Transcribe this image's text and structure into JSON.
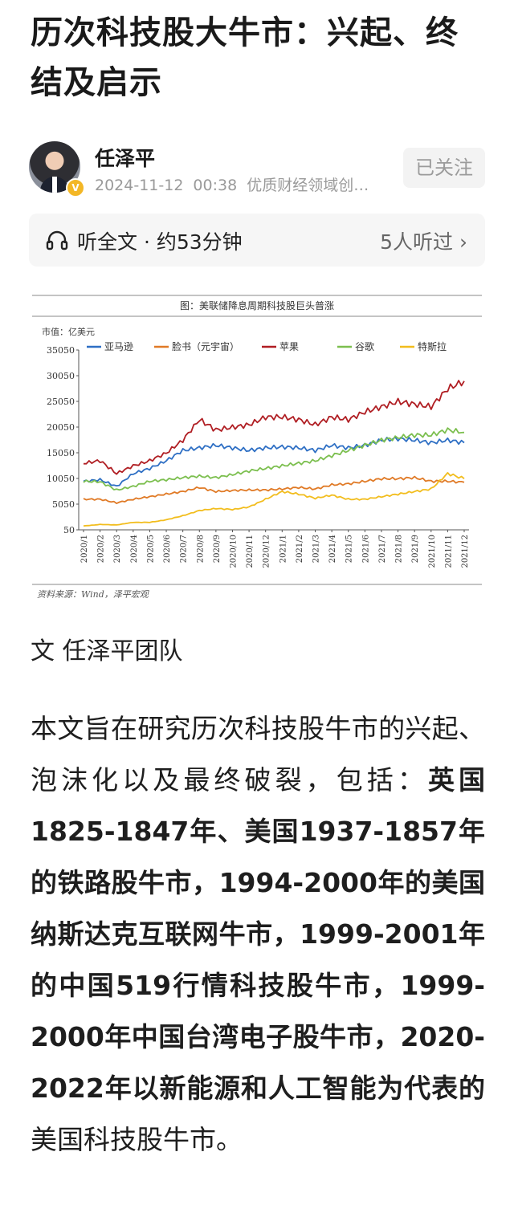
{
  "article": {
    "title": "历次科技股大牛市：兴起、终结及启示",
    "byline": "文 任泽平团队",
    "body_intro": "本文旨在研究历次科技股牛市的兴起、泡沫化以及最终破裂，包括：",
    "body_bold": "英国1825-1847年、美国1937-1857年的铁路股牛市，1994-2000年的美国纳斯达克互联网牛市，1999-2001年的中国519行情科技股牛市，1999-2000年中国台湾电子股牛市，2020-2022年以新能源和人工智能为代表的",
    "body_end": "美国科技股牛市。"
  },
  "author": {
    "name": "任泽平",
    "date": "2024-11-12",
    "time": "00:38",
    "tagline": "优质财经领域创…",
    "follow_label": "已关注"
  },
  "listen": {
    "label": "听全文 · 约53分钟",
    "listeners": "5人听过",
    "icon": "headphones-icon"
  },
  "chart_data": {
    "type": "line",
    "title": "图：美联储降息周期科技股巨头普涨",
    "ylabel": "市值：亿美元",
    "source": "资料来源：Wind，泽平宏观",
    "ylim": [
      50,
      35050
    ],
    "yticks": [
      "35050",
      "30050",
      "25050",
      "20050",
      "15050",
      "10050",
      "5050",
      "50"
    ],
    "ytick_values": [
      35050,
      30050,
      25050,
      20050,
      15050,
      10050,
      5050,
      50
    ],
    "x": [
      "2020/1",
      "2020/2",
      "2020/3",
      "2020/4",
      "2020/5",
      "2020/6",
      "2020/7",
      "2020/8",
      "2020/9",
      "2020/10",
      "2020/11",
      "2020/12",
      "2021/1",
      "2021/2",
      "2021/3",
      "2021/4",
      "2021/5",
      "2021/6",
      "2021/7",
      "2021/8",
      "2021/9",
      "2021/10",
      "2021/11",
      "2021/12"
    ],
    "series": [
      {
        "name": "亚马逊",
        "color": "#2e6fc4",
        "values": [
          9500,
          9800,
          8500,
          11000,
          12000,
          13500,
          15500,
          16000,
          16500,
          16000,
          15500,
          16000,
          16200,
          16000,
          15500,
          16500,
          16000,
          16500,
          17500,
          17800,
          17500,
          17000,
          17500,
          17000
        ]
      },
      {
        "name": "脸书（元宇宙）",
        "color": "#e07a26",
        "values": [
          6000,
          6000,
          5300,
          6000,
          6500,
          7000,
          7500,
          8300,
          7500,
          7700,
          7800,
          7800,
          8000,
          8300,
          8000,
          8800,
          9000,
          9500,
          10000,
          10000,
          10200,
          9500,
          9500,
          9300
        ]
      },
      {
        "name": "苹果",
        "color": "#b01e23",
        "values": [
          13000,
          13500,
          11000,
          12500,
          13500,
          15000,
          17500,
          21500,
          19500,
          20000,
          20500,
          22000,
          22000,
          21500,
          20500,
          22000,
          21500,
          23000,
          24000,
          25000,
          24500,
          24000,
          27500,
          29000
        ]
      },
      {
        "name": "谷歌",
        "color": "#7cbf4f",
        "values": [
          9500,
          9400,
          7800,
          8500,
          9500,
          9800,
          10200,
          10500,
          10200,
          10800,
          11500,
          12000,
          12500,
          13000,
          13500,
          14500,
          15500,
          16500,
          17500,
          18000,
          18500,
          18500,
          19500,
          19000
        ]
      },
      {
        "name": "特斯拉",
        "color": "#f2bd1d",
        "values": [
          800,
          1100,
          1000,
          1500,
          1500,
          2000,
          2800,
          3800,
          4200,
          4000,
          4500,
          6000,
          7500,
          7000,
          6200,
          6800,
          6000,
          6000,
          6500,
          7000,
          7500,
          8000,
          11000,
          10000
        ]
      }
    ]
  }
}
